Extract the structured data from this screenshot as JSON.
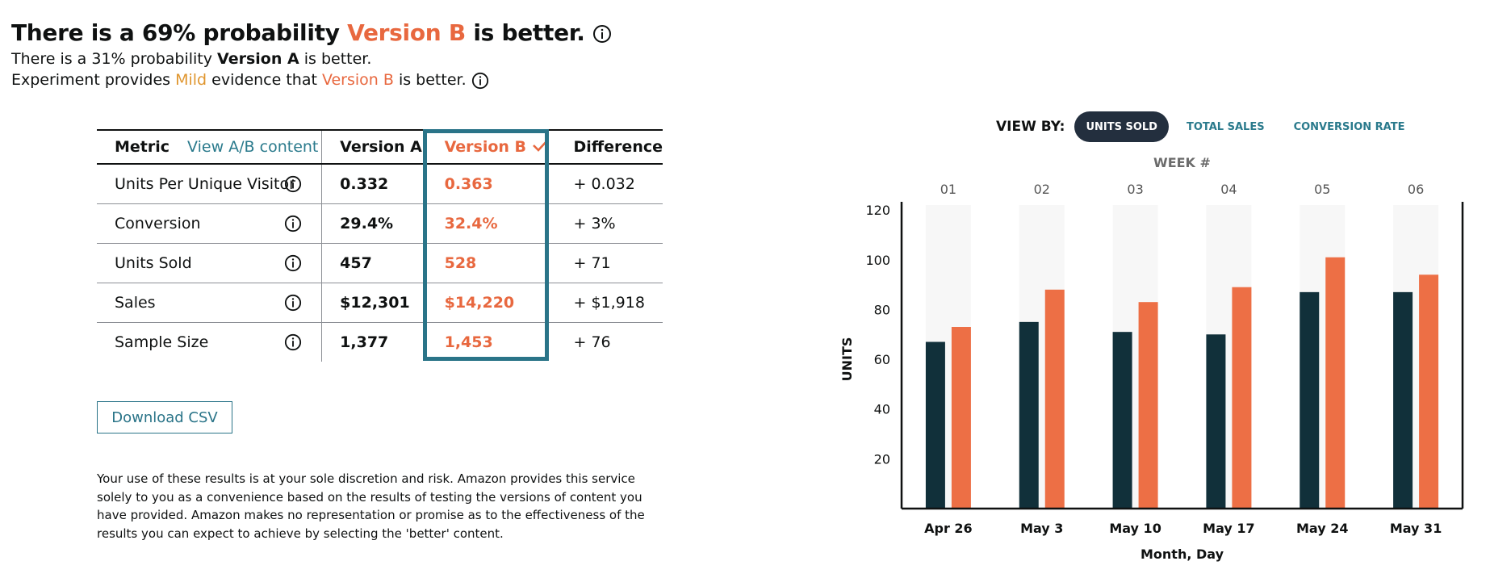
{
  "headline": {
    "prefix": "There is a 69% probability ",
    "highlight": "Version B",
    "suffix": " is better."
  },
  "subline1": {
    "prefix": "There is a 31% probability ",
    "bold": "Version A",
    "suffix": " is better."
  },
  "subline2": {
    "prefix": "Experiment provides ",
    "mild": "Mild",
    "middle": " evidence that ",
    "highlight": "Version B",
    "suffix": " is better."
  },
  "table": {
    "headers": {
      "metric": "Metric",
      "view_link": "View A/B content",
      "version_a": "Version A",
      "version_b": "Version B",
      "difference": "Difference"
    },
    "rows": [
      {
        "metric": "Units Per Unique Visitor",
        "a": "0.332",
        "b": "0.363",
        "diff": "+ 0.032"
      },
      {
        "metric": "Conversion",
        "a": "29.4%",
        "b": "32.4%",
        "diff": "+ 3%"
      },
      {
        "metric": "Units Sold",
        "a": "457",
        "b": "528",
        "diff": "+ 71"
      },
      {
        "metric": "Sales",
        "a": "$12,301",
        "b": "$14,220",
        "diff": "+ $1,918"
      },
      {
        "metric": "Sample Size",
        "a": "1,377",
        "b": "1,453",
        "diff": "+ 76"
      }
    ]
  },
  "download_label": "Download CSV",
  "disclaimer": "Your use of these results is at your sole discretion and risk. Amazon provides this service solely to you as a convenience based on the results of testing the versions of content you have provided. Amazon makes no representation or promise as to the effectiveness of the results you can expect to achieve by selecting the 'better' content.",
  "view_by": {
    "label": "VIEW BY:",
    "options": [
      "UNITS SOLD",
      "TOTAL SALES",
      "CONVERSION RATE"
    ],
    "selected": "UNITS SOLD"
  },
  "colors": {
    "version_a": "#11303a",
    "version_b": "#ed6f45",
    "accent": "#2a7a8c",
    "band": "#f7f7f7"
  },
  "chart_data": {
    "type": "bar",
    "top_axis_title": "WEEK #",
    "weeks": [
      "01",
      "02",
      "03",
      "04",
      "05",
      "06"
    ],
    "categories": [
      "Apr 26",
      "May 3",
      "May 10",
      "May 17",
      "May 24",
      "May 31"
    ],
    "series": [
      {
        "values": [
          67,
          75,
          71,
          70,
          87,
          87
        ]
      },
      {
        "values": [
          73,
          88,
          83,
          89,
          101,
          94
        ]
      }
    ],
    "ylabel": "UNITS",
    "xlabel": "Month, Day",
    "ylim": [
      0,
      122
    ],
    "yticks": [
      20,
      40,
      60,
      80,
      100,
      120
    ],
    "grid": false
  }
}
